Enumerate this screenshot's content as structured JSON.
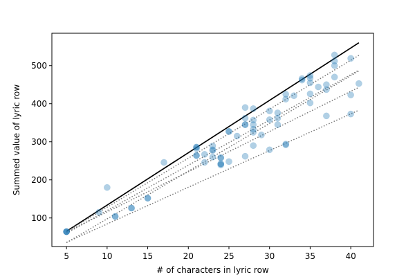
{
  "chart_data": {
    "type": "scatter",
    "title": "",
    "xlabel": "# of characters in lyric row",
    "ylabel": "Summed value of lyric row",
    "xlim": [
      3.2,
      42.8
    ],
    "ylim": [
      25,
      585
    ],
    "xticks": [
      5,
      10,
      15,
      20,
      25,
      30,
      35,
      40
    ],
    "yticks": [
      100,
      200,
      300,
      400,
      500
    ],
    "grid": false,
    "legend": "none",
    "point_color": "#1f77b4",
    "point_opacity": 0.35,
    "points": [
      [
        5,
        64
      ],
      [
        5,
        64
      ],
      [
        5,
        64
      ],
      [
        5,
        64
      ],
      [
        9,
        115
      ],
      [
        10,
        180
      ],
      [
        11,
        104
      ],
      [
        11,
        104
      ],
      [
        13,
        126
      ],
      [
        13,
        126
      ],
      [
        15,
        152
      ],
      [
        15,
        152
      ],
      [
        17,
        246
      ],
      [
        21,
        286
      ],
      [
        21,
        286
      ],
      [
        21,
        282
      ],
      [
        21,
        264
      ],
      [
        21,
        264
      ],
      [
        22,
        246
      ],
      [
        22,
        267
      ],
      [
        23,
        289
      ],
      [
        23,
        279
      ],
      [
        23,
        277
      ],
      [
        23,
        260
      ],
      [
        24,
        258
      ],
      [
        24,
        258
      ],
      [
        24,
        242
      ],
      [
        24,
        242
      ],
      [
        24,
        239
      ],
      [
        25,
        327
      ],
      [
        25,
        327
      ],
      [
        25,
        248
      ],
      [
        26,
        315
      ],
      [
        27,
        390
      ],
      [
        27,
        362
      ],
      [
        27,
        345
      ],
      [
        27,
        345
      ],
      [
        27,
        262
      ],
      [
        28,
        387
      ],
      [
        28,
        357
      ],
      [
        28,
        345
      ],
      [
        28,
        333
      ],
      [
        28,
        325
      ],
      [
        28,
        290
      ],
      [
        29,
        318
      ],
      [
        30,
        381
      ],
      [
        30,
        358
      ],
      [
        30,
        279
      ],
      [
        31,
        376
      ],
      [
        31,
        362
      ],
      [
        31,
        345
      ],
      [
        32,
        425
      ],
      [
        32,
        412
      ],
      [
        32,
        294
      ],
      [
        32,
        292
      ],
      [
        33,
        421
      ],
      [
        34,
        466
      ],
      [
        34,
        462
      ],
      [
        35,
        474
      ],
      [
        35,
        467
      ],
      [
        35,
        455
      ],
      [
        35,
        426
      ],
      [
        35,
        402
      ],
      [
        36,
        444
      ],
      [
        37,
        450
      ],
      [
        37,
        437
      ],
      [
        37,
        368
      ],
      [
        38,
        528
      ],
      [
        38,
        512
      ],
      [
        38,
        500
      ],
      [
        38,
        470
      ],
      [
        40,
        519
      ],
      [
        40,
        423
      ],
      [
        40,
        373
      ],
      [
        41,
        453
      ]
    ],
    "reference_lines": [
      {
        "style": "solid",
        "color": "#000000",
        "x": [
          5,
          41
        ],
        "y": [
          65,
          560
        ]
      },
      {
        "style": "dotted",
        "color": "#777777",
        "x": [
          5,
          41
        ],
        "y": [
          64,
          527
        ]
      },
      {
        "style": "dotted",
        "color": "#777777",
        "x": [
          5,
          41
        ],
        "y": [
          60,
          488
        ]
      },
      {
        "style": "dotted",
        "color": "#777777",
        "x": [
          5,
          41
        ],
        "y": [
          35,
          486
        ]
      },
      {
        "style": "dotted",
        "color": "#777777",
        "x": [
          5,
          41
        ],
        "y": [
          63,
          443
        ]
      },
      {
        "style": "dotted",
        "color": "#777777",
        "x": [
          5,
          41
        ],
        "y": [
          36,
          383
        ]
      }
    ]
  }
}
